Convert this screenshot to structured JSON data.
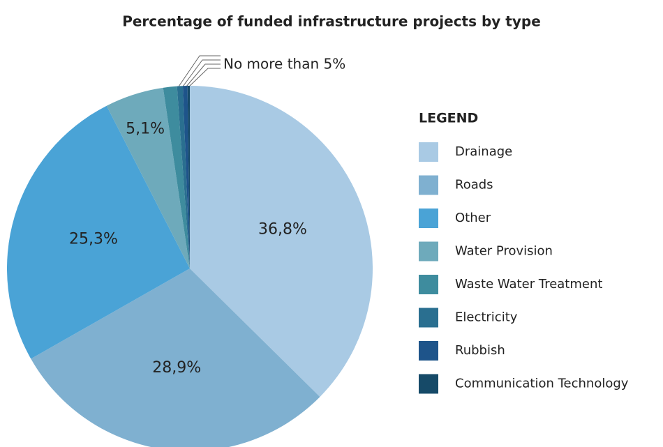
{
  "chart_data": {
    "type": "pie",
    "title": "Percentage of funded infrastructure projects by type",
    "legend_title": "LEGEND",
    "annotation": "No more than 5%",
    "categories": [
      "Drainage",
      "Roads",
      "Other",
      "Water Provision",
      "Waste Water Treatment",
      "Electricity",
      "Rubbish",
      "Communication Technology"
    ],
    "values": [
      36.8,
      28.9,
      25.3,
      5.1,
      1.2,
      0.5,
      0.4,
      0.2
    ],
    "value_labels": [
      "36,8%",
      "28,9%",
      "25,3%",
      "5,1%",
      null,
      null,
      null,
      null
    ],
    "colors": [
      "#a9cae4",
      "#7fb0d0",
      "#4aa3d6",
      "#6eaabb",
      "#3e8c9e",
      "#2a6f90",
      "#1e548a",
      "#164a68"
    ],
    "legend": "right"
  }
}
